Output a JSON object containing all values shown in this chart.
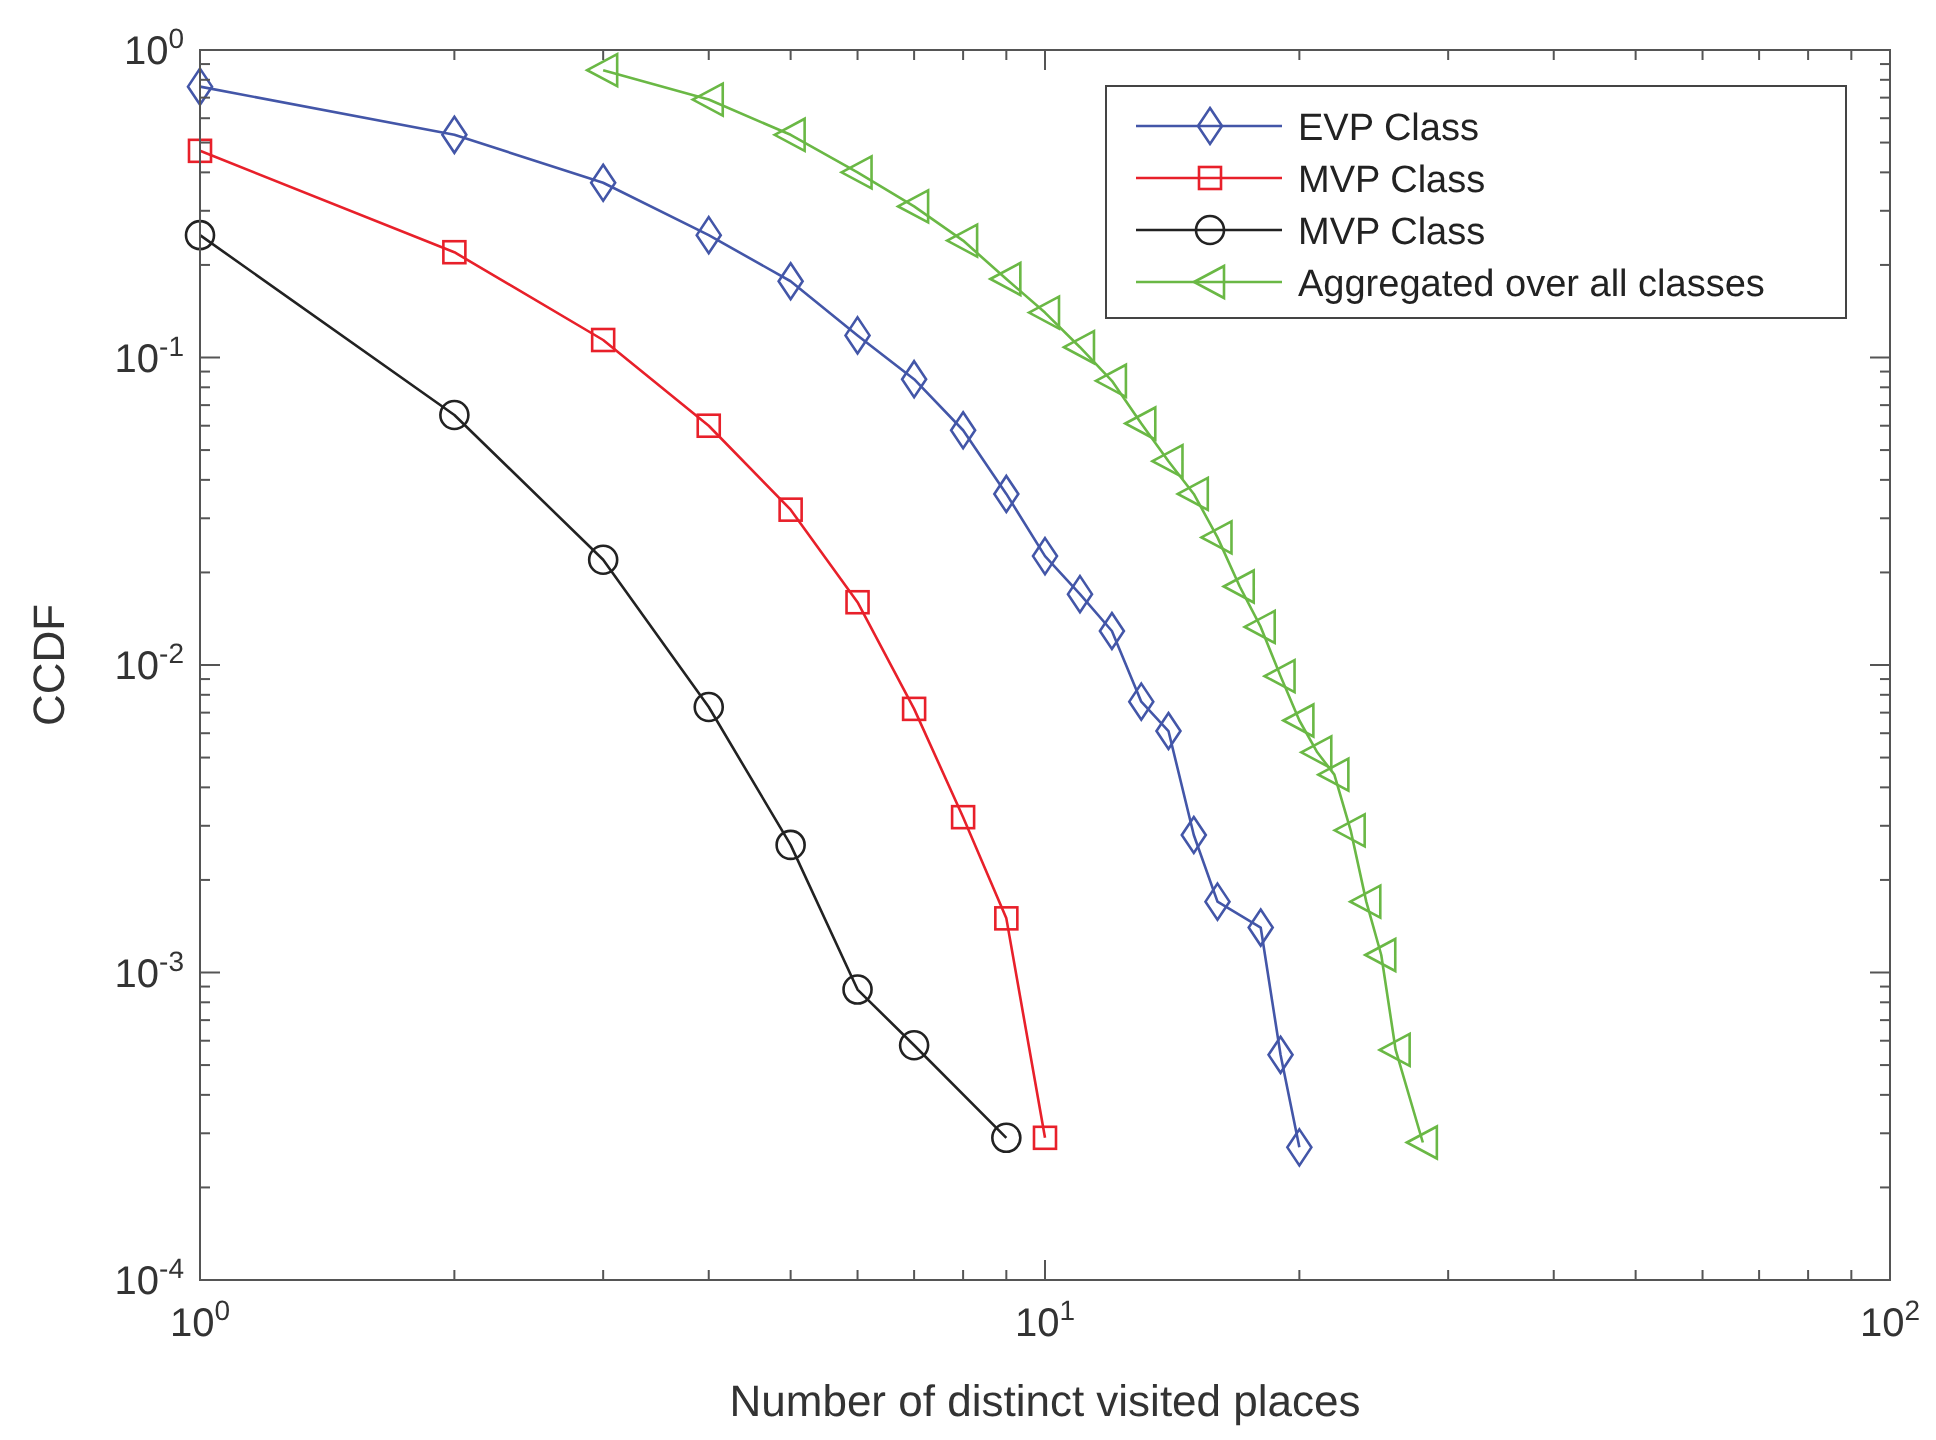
{
  "chart_data": {
    "type": "line",
    "xlabel": "Number of distinct visited places",
    "ylabel": "CCDF",
    "log": "xy",
    "grid": false,
    "legend": "top right",
    "xlim": [
      1,
      100
    ],
    "xticks": [
      {
        "value": 1,
        "label": "10$^{0}$"
      },
      {
        "value": 10,
        "label": "10$^{1}$"
      },
      {
        "value": 100,
        "label": "10$^{2}$"
      }
    ],
    "ylim": [
      0.0001,
      1
    ],
    "yticks": [
      {
        "value": 0.0001,
        "label": "10$^{-4}$"
      },
      {
        "value": 0.001,
        "label": "10$^{-3}$"
      },
      {
        "value": 0.01,
        "label": "10$^{-2}$"
      },
      {
        "value": 0.1,
        "label": "10$^{-1}$"
      },
      {
        "value": 1,
        "label": "10$^{0}$"
      }
    ],
    "series": [
      {
        "name": "EVP Class",
        "color": "#4356a8",
        "marker": "diamond",
        "x": [
          1,
          2,
          3,
          4,
          5,
          6,
          7,
          8,
          9,
          10,
          11,
          12,
          13,
          14,
          15,
          16,
          18,
          19,
          20
        ],
        "values": [
          0.76,
          0.53,
          0.37,
          0.25,
          0.177,
          0.118,
          0.085,
          0.058,
          0.036,
          0.0226,
          0.017,
          0.0129,
          0.0076,
          0.0061,
          0.0028,
          0.0017,
          0.0014,
          0.00054,
          0.00027
        ]
      },
      {
        "name": "MVP Class",
        "color": "#e8202a",
        "marker": "square",
        "x": [
          1,
          2,
          3,
          4,
          5,
          6,
          7,
          8,
          9,
          10
        ],
        "values": [
          0.47,
          0.22,
          0.114,
          0.06,
          0.032,
          0.016,
          0.0072,
          0.0032,
          0.0015,
          0.00029
        ]
      },
      {
        "name": "MVP Class",
        "color": "#222222",
        "marker": "circle",
        "x": [
          1,
          2,
          3,
          4,
          5,
          6,
          7,
          9
        ],
        "values": [
          0.25,
          0.065,
          0.022,
          0.0073,
          0.0026,
          0.00088,
          0.00058,
          0.00029
        ]
      },
      {
        "name": "Aggregated over all classes",
        "color": "#6ab845",
        "marker": "triangle",
        "x": [
          3,
          4,
          5,
          6,
          7,
          8,
          9,
          10,
          11,
          12,
          13,
          14,
          15,
          16,
          17,
          18,
          19,
          20,
          21,
          22,
          23,
          24,
          25,
          26,
          28
        ],
        "values": [
          0.86,
          0.69,
          0.53,
          0.4,
          0.31,
          0.24,
          0.18,
          0.14,
          0.108,
          0.084,
          0.061,
          0.046,
          0.036,
          0.026,
          0.018,
          0.0133,
          0.0092,
          0.0066,
          0.0052,
          0.0044,
          0.0029,
          0.0017,
          0.00114,
          0.00056,
          0.00028
        ]
      }
    ]
  }
}
